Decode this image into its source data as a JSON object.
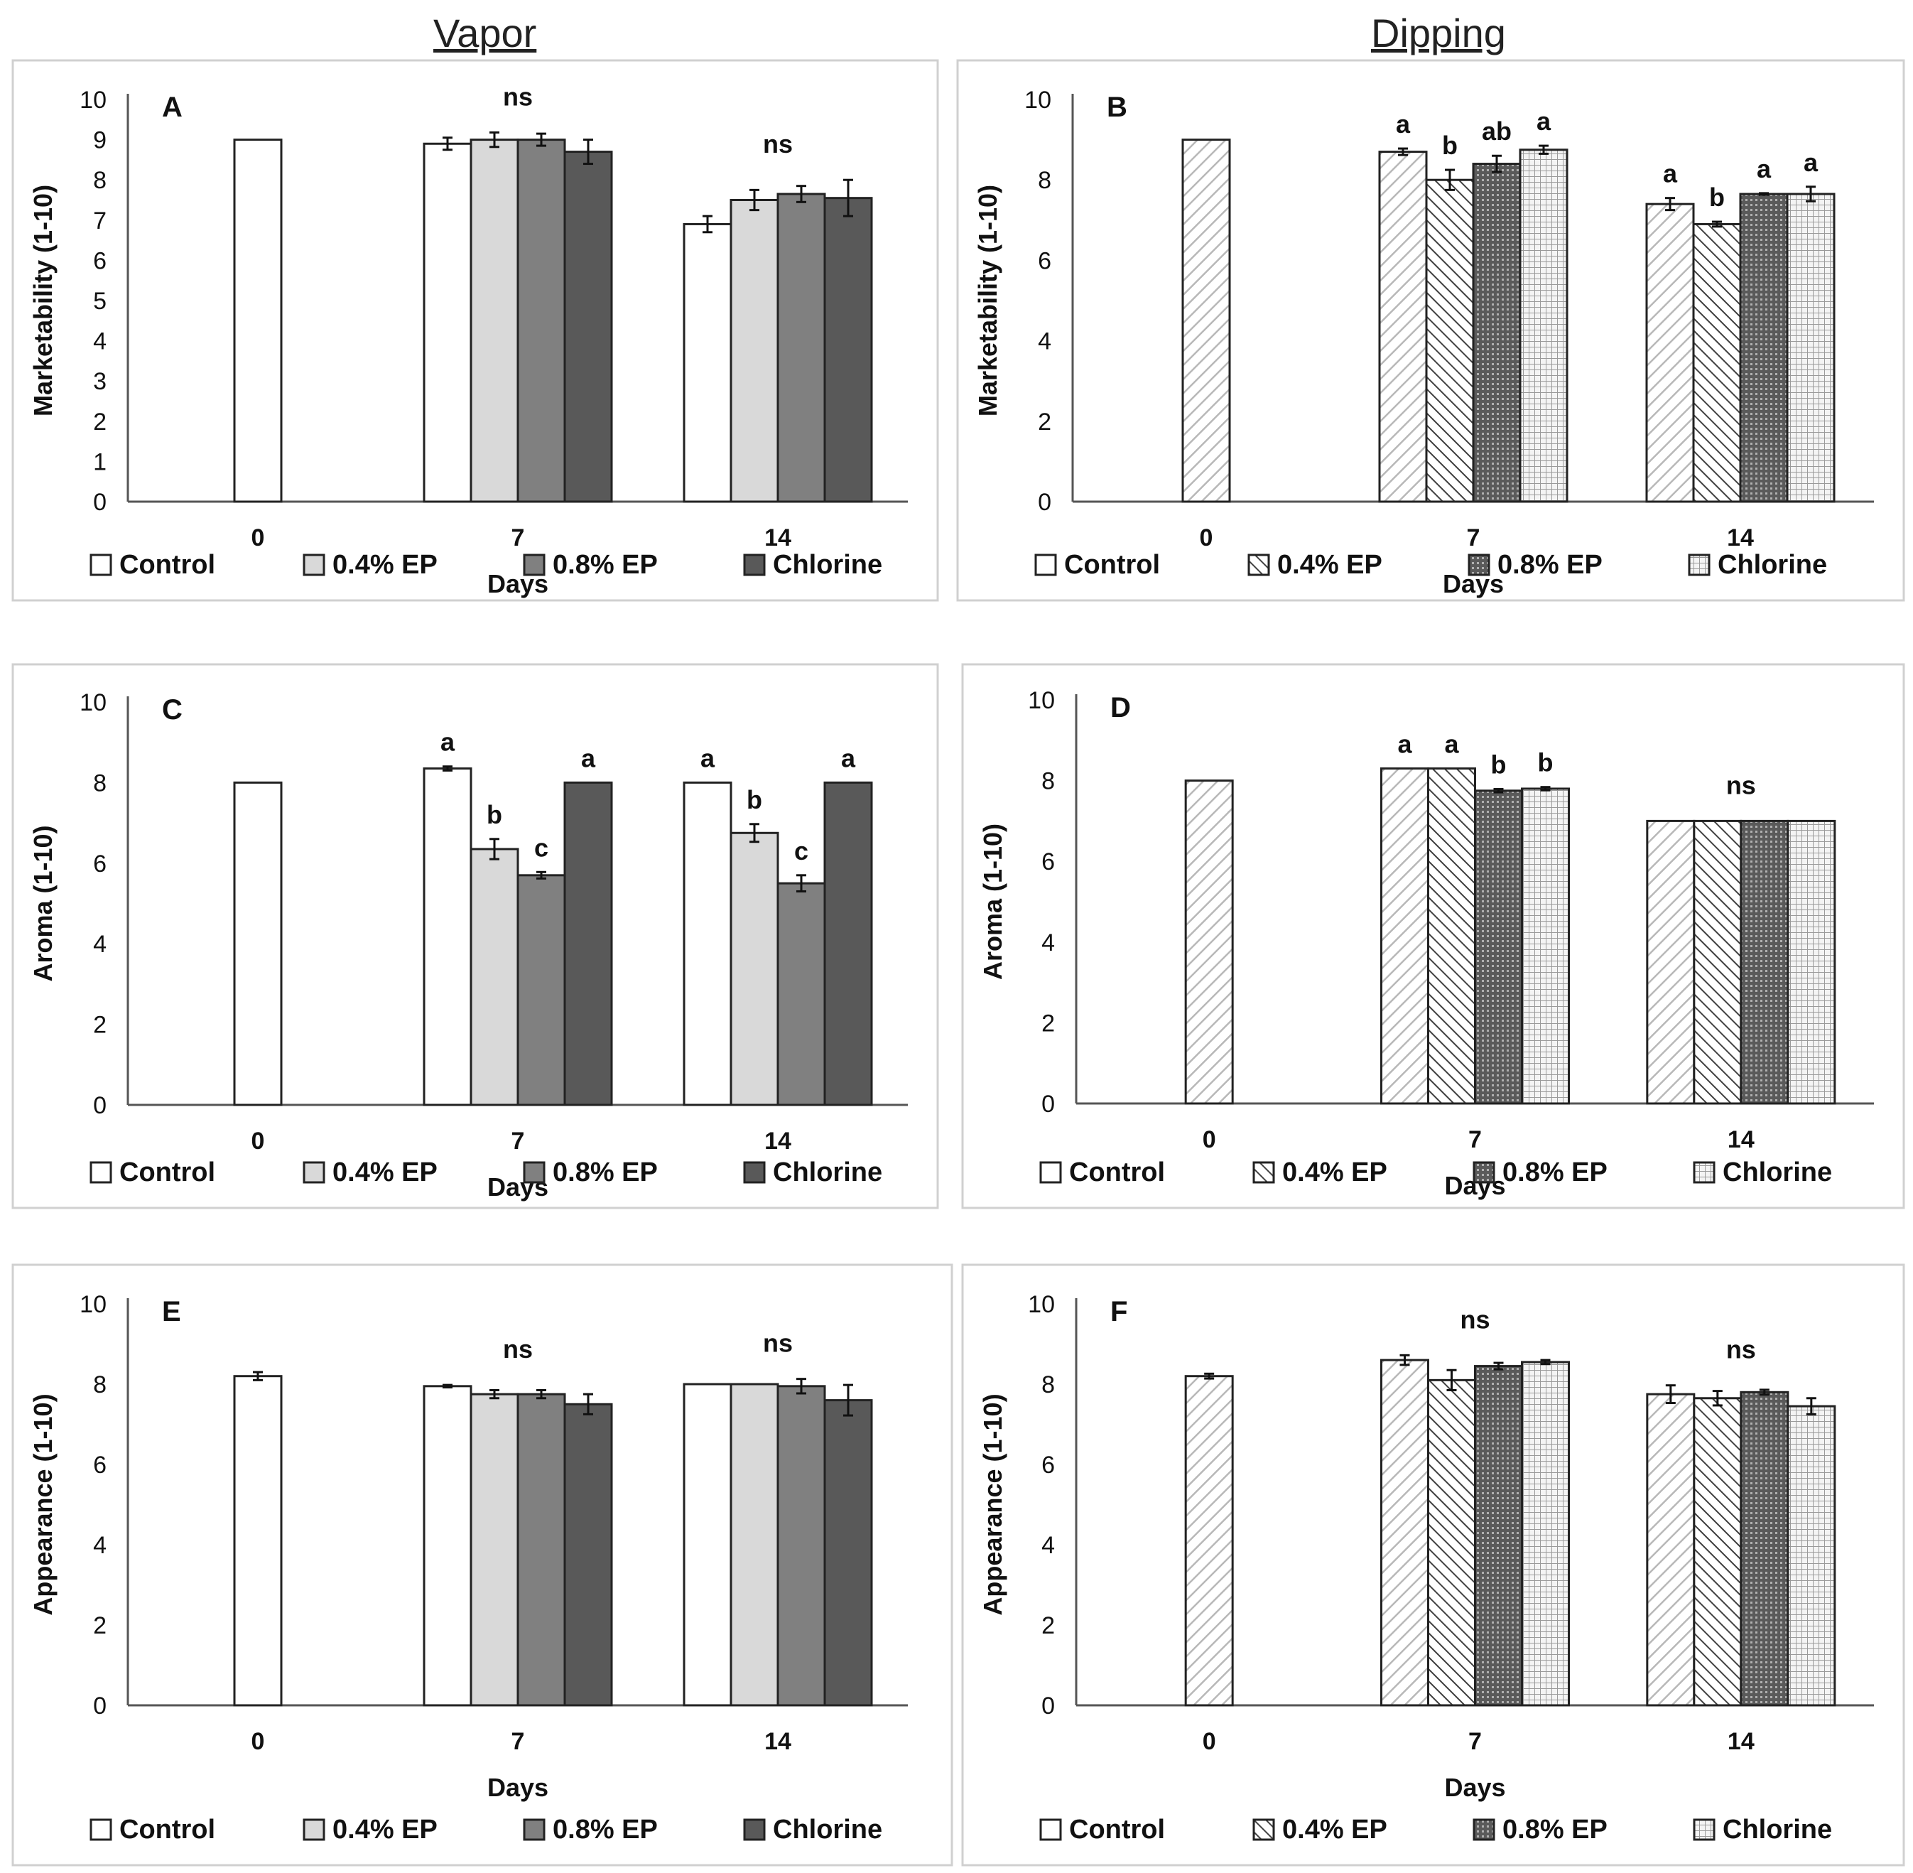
{
  "column_headers": [
    "Vapor",
    "Dipping"
  ],
  "colors": {
    "control": "#ffffff",
    "ep04": "#d9d9d9",
    "ep08": "#808080",
    "chlorine": "#595959",
    "axis": "#555555",
    "panel_border": "#d0d0d0",
    "text": "#111111"
  },
  "chart_data": [
    {
      "type": "bar",
      "panel": "A",
      "variant": "solid",
      "categories": [
        "0",
        "7",
        "14"
      ],
      "xlabel": "Days",
      "ylabel": "Marketability (1-10)",
      "ylim": [
        0,
        10
      ],
      "yticks": [
        0,
        1,
        2,
        3,
        4,
        5,
        6,
        7,
        8,
        9,
        10
      ],
      "legend": [
        "Control",
        "0.4% EP",
        "0.8% EP",
        "Chlorine"
      ],
      "legend_position": "bottom",
      "series": [
        {
          "name": "Control",
          "values": [
            9.0,
            8.9,
            6.9
          ],
          "errors": [
            0,
            0.15,
            0.2
          ]
        },
        {
          "name": "0.4% EP",
          "values": [
            null,
            9.0,
            7.5
          ],
          "errors": [
            0,
            0.18,
            0.25
          ]
        },
        {
          "name": "0.8% EP",
          "values": [
            null,
            9.0,
            7.65
          ],
          "errors": [
            0,
            0.15,
            0.2
          ]
        },
        {
          "name": "Chlorine",
          "values": [
            null,
            8.7,
            7.55
          ],
          "errors": [
            0,
            0.3,
            0.45
          ]
        }
      ],
      "group_labels": [
        [],
        [
          "ns"
        ],
        [
          "ns"
        ]
      ]
    },
    {
      "type": "bar",
      "panel": "B",
      "variant": "pattern",
      "categories": [
        "0",
        "7",
        "14"
      ],
      "xlabel": "Days",
      "ylabel": "Marketability (1-10)",
      "ylim": [
        0,
        10
      ],
      "yticks": [
        0,
        2,
        4,
        6,
        8,
        10
      ],
      "legend": [
        "Control",
        "0.4% EP",
        "0.8% EP",
        "Chlorine"
      ],
      "legend_position": "bottom",
      "series": [
        {
          "name": "Control",
          "values": [
            9.0,
            8.7,
            7.4
          ],
          "errors": [
            0,
            0.08,
            0.15
          ],
          "letters": [
            "",
            "a",
            "a"
          ]
        },
        {
          "name": "0.4% EP",
          "values": [
            null,
            8.0,
            6.9
          ],
          "errors": [
            0,
            0.25,
            0.06
          ],
          "letters": [
            "",
            "b",
            "b"
          ]
        },
        {
          "name": "0.8% EP",
          "values": [
            null,
            8.4,
            7.65
          ],
          "errors": [
            0,
            0.2,
            0.02
          ],
          "letters": [
            "",
            "ab",
            "a"
          ]
        },
        {
          "name": "Chlorine",
          "values": [
            null,
            8.75,
            7.65
          ],
          "errors": [
            0,
            0.1,
            0.18
          ],
          "letters": [
            "",
            "a",
            "a"
          ]
        }
      ],
      "group_labels": [
        [],
        [],
        []
      ]
    },
    {
      "type": "bar",
      "panel": "C",
      "variant": "solid",
      "categories": [
        "0",
        "7",
        "14"
      ],
      "xlabel": "Days",
      "ylabel": "Aroma (1-10)",
      "ylim": [
        0,
        10
      ],
      "yticks": [
        0,
        2,
        4,
        6,
        8,
        10
      ],
      "legend": [
        "Control",
        "0.4% EP",
        "0.8% EP",
        "Chlorine"
      ],
      "legend_position": "bottom",
      "series": [
        {
          "name": "Control",
          "values": [
            8.0,
            8.35,
            8.0
          ],
          "errors": [
            0,
            0.05,
            0
          ],
          "letters": [
            "",
            "a",
            "a"
          ]
        },
        {
          "name": "0.4% EP",
          "values": [
            null,
            6.35,
            6.75
          ],
          "errors": [
            0,
            0.25,
            0.22
          ],
          "letters": [
            "",
            "b",
            "b"
          ]
        },
        {
          "name": "0.8% EP",
          "values": [
            null,
            5.7,
            5.5
          ],
          "errors": [
            0,
            0.08,
            0.2
          ],
          "letters": [
            "",
            "c",
            "c"
          ]
        },
        {
          "name": "Chlorine",
          "values": [
            null,
            8.0,
            8.0
          ],
          "errors": [
            0,
            0,
            0
          ],
          "letters": [
            "",
            "a",
            "a"
          ]
        }
      ],
      "group_labels": [
        [],
        [],
        []
      ]
    },
    {
      "type": "bar",
      "panel": "D",
      "variant": "pattern",
      "categories": [
        "0",
        "7",
        "14"
      ],
      "xlabel": "Days",
      "ylabel": "Aroma (1-10)",
      "ylim": [
        0,
        10
      ],
      "yticks": [
        0,
        2,
        4,
        6,
        8,
        10
      ],
      "legend": [
        "Control",
        "0.4% EP",
        "0.8% EP",
        "Chlorine"
      ],
      "legend_position": "bottom",
      "series": [
        {
          "name": "Control",
          "values": [
            8.0,
            8.3,
            7.0
          ],
          "errors": [
            0,
            0,
            0
          ],
          "letters": [
            "",
            "a",
            ""
          ]
        },
        {
          "name": "0.4% EP",
          "values": [
            null,
            8.3,
            7.0
          ],
          "errors": [
            0,
            0,
            0
          ],
          "letters": [
            "",
            "a",
            ""
          ]
        },
        {
          "name": "0.8% EP",
          "values": [
            null,
            7.75,
            7.0
          ],
          "errors": [
            0,
            0.04,
            0
          ],
          "letters": [
            "",
            "b",
            ""
          ]
        },
        {
          "name": "Chlorine",
          "values": [
            null,
            7.8,
            7.0
          ],
          "errors": [
            0,
            0.04,
            0
          ],
          "letters": [
            "",
            "b",
            ""
          ]
        }
      ],
      "group_labels": [
        [],
        [],
        [
          "ns"
        ]
      ]
    },
    {
      "type": "bar",
      "panel": "E",
      "variant": "solid",
      "categories": [
        "0",
        "7",
        "14"
      ],
      "xlabel": "Days",
      "ylabel": "Appearance (1-10)",
      "ylim": [
        0,
        10
      ],
      "yticks": [
        0,
        2,
        4,
        6,
        8,
        10
      ],
      "legend": [
        "Control",
        "0.4% EP",
        "0.8% EP",
        "Chlorine"
      ],
      "legend_position": "bottom",
      "series": [
        {
          "name": "Control",
          "values": [
            8.2,
            7.95,
            8.0
          ],
          "errors": [
            0.1,
            0.03,
            0
          ],
          "letters": [
            "",
            "",
            ""
          ]
        },
        {
          "name": "0.4% EP",
          "values": [
            null,
            7.75,
            8.0
          ],
          "errors": [
            0,
            0.1,
            0
          ],
          "letters": [
            "",
            "",
            ""
          ]
        },
        {
          "name": "0.8% EP",
          "values": [
            null,
            7.75,
            7.95
          ],
          "errors": [
            0,
            0.1,
            0.18
          ],
          "letters": [
            "",
            "",
            ""
          ]
        },
        {
          "name": "Chlorine",
          "values": [
            null,
            7.5,
            7.6
          ],
          "errors": [
            0,
            0.25,
            0.38
          ],
          "letters": [
            "",
            "",
            ""
          ]
        }
      ],
      "group_labels": [
        [],
        [
          "ns"
        ],
        [
          "ns"
        ]
      ]
    },
    {
      "type": "bar",
      "panel": "F",
      "variant": "pattern",
      "categories": [
        "0",
        "7",
        "14"
      ],
      "xlabel": "Days",
      "ylabel": "Appearance (1-10)",
      "ylim": [
        0,
        10
      ],
      "yticks": [
        0,
        2,
        4,
        6,
        8,
        10
      ],
      "legend": [
        "Control",
        "0.4% EP",
        "0.8% EP",
        "Chlorine"
      ],
      "legend_position": "bottom",
      "series": [
        {
          "name": "Control",
          "values": [
            8.2,
            8.6,
            7.75
          ],
          "errors": [
            0.06,
            0.12,
            0.22
          ],
          "letters": [
            "",
            "",
            ""
          ]
        },
        {
          "name": "0.4% EP",
          "values": [
            null,
            8.1,
            7.65
          ],
          "errors": [
            0,
            0.25,
            0.18
          ],
          "letters": [
            "",
            "",
            ""
          ]
        },
        {
          "name": "0.8% EP",
          "values": [
            null,
            8.45,
            7.8
          ],
          "errors": [
            0,
            0.08,
            0.06
          ],
          "letters": [
            "",
            "",
            ""
          ]
        },
        {
          "name": "Chlorine",
          "values": [
            null,
            8.55,
            7.45
          ],
          "errors": [
            0,
            0.05,
            0.2
          ],
          "letters": [
            "",
            "",
            ""
          ]
        }
      ],
      "group_labels": [
        [],
        [
          "ns"
        ],
        [
          "ns"
        ]
      ]
    }
  ]
}
